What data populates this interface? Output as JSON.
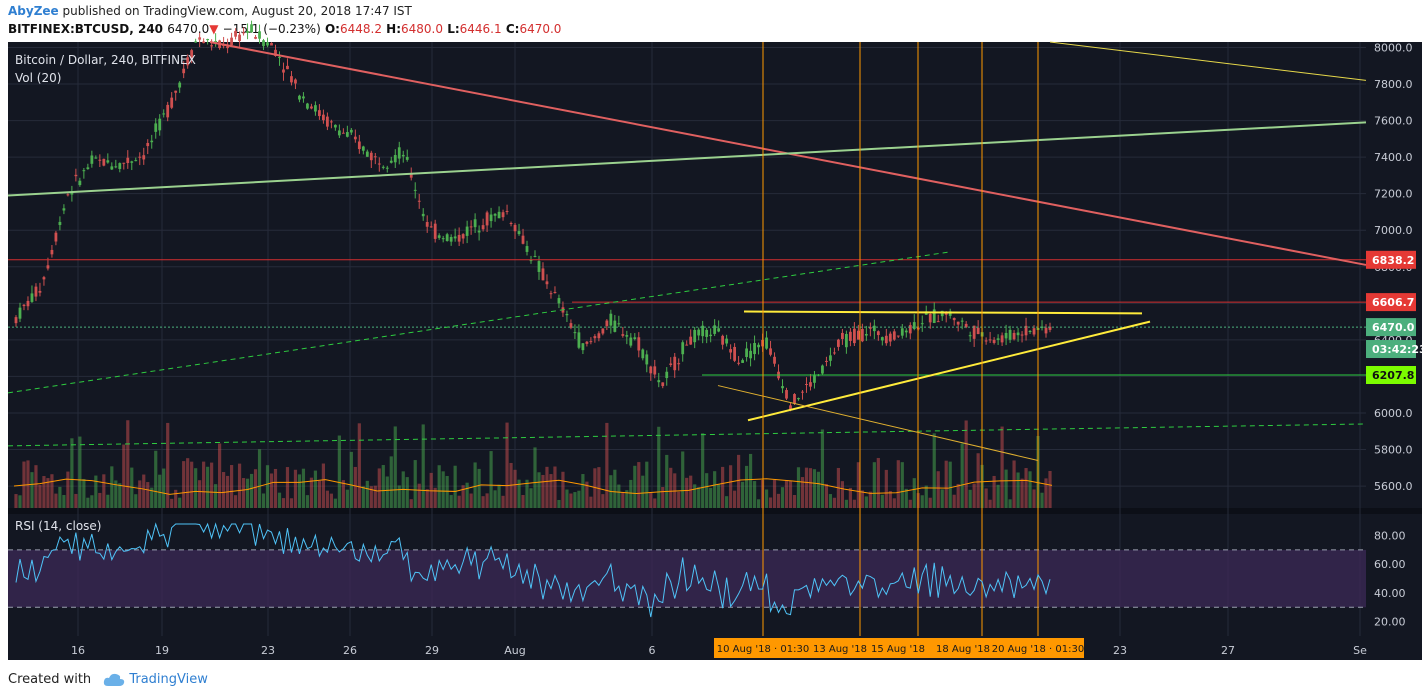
{
  "header": {
    "author": "AbyZee",
    "published_text": "published on TradingView.com, August 20, 2018 17:47 IST"
  },
  "symbol_bar": {
    "symbol": "BITFINEX:BTCUSD, 240",
    "last": "6470.0",
    "change": "−15.1 (−0.23%)",
    "open_label": "O:",
    "open": "6448.2",
    "high_label": "H:",
    "high": "6480.0",
    "low_label": "L:",
    "low": "6446.1",
    "close_label": "C:",
    "close": "6470.0"
  },
  "chart_data": {
    "type": "candlestick",
    "title": "Bitcoin / Dollar, 240, BITFINEX",
    "volume_label": "Vol (20)",
    "rsi_label": "RSI (14, close)",
    "x_tick_labels": [
      "16",
      "19",
      "23",
      "26",
      "29",
      "Aug",
      "6",
      "23",
      "27",
      "Se"
    ],
    "y_price_ticks": [
      "8000.0",
      "7800.0",
      "7600.0",
      "7400.0",
      "7200.0",
      "7000.0",
      "6800.0",
      "6600.0",
      "6400.0",
      "6200.0",
      "6000.0",
      "5800.0",
      "5600.0"
    ],
    "y_rsi_ticks": [
      "80.00",
      "60.00",
      "40.00",
      "20.00"
    ],
    "ylim": [
      5480,
      8030
    ],
    "rsi_ylim": [
      10,
      95
    ],
    "price_labels": [
      {
        "text": "6838.2",
        "value": 6838.2,
        "color": "#e53935"
      },
      {
        "text": "6606.7",
        "value": 6606.7,
        "color": "#e53935"
      },
      {
        "text": "6470.0",
        "value": 6470.0,
        "color": "#4caf7d"
      },
      {
        "text": "03:42:23",
        "value": 6350,
        "color": "#4caf7d"
      },
      {
        "text": "6207.8",
        "value": 6207.8,
        "color": "#7cfc00"
      }
    ],
    "horizontal_lines": [
      {
        "value": 6838.2,
        "color": "#d32f2f"
      },
      {
        "value": 6606.7,
        "color": "#d32f2f"
      },
      {
        "value": 6207.8,
        "color": "#2ecc40"
      },
      {
        "value": 6470.0,
        "color": "#4caf7d",
        "style": "dotted"
      }
    ],
    "date_labels": [
      "10 Aug '18 · 01:30",
      "13 Aug '18",
      "15 Aug '18",
      "18 Aug '18",
      "20 Aug '18 · 01:30"
    ],
    "price_path": [
      [
        6380,
        6460,
        6300,
        6520
      ],
      [
        6500,
        6540,
        6280,
        6700
      ],
      [
        6700,
        6780,
        6600,
        7200
      ],
      [
        7300,
        7450,
        7250,
        7380
      ],
      [
        7380,
        7420,
        7300,
        7360
      ],
      [
        7350,
        7470,
        7250,
        7420
      ],
      [
        7420,
        7500,
        7380,
        7700
      ],
      [
        7700,
        7820,
        7600,
        8050
      ],
      [
        8050,
        8120,
        7900,
        8000
      ],
      [
        7950,
        8200,
        7850,
        8100
      ],
      [
        8100,
        8200,
        7950,
        8000
      ],
      [
        8000,
        8100,
        7700,
        7750
      ],
      [
        7750,
        7800,
        7550,
        7600
      ],
      [
        7600,
        7700,
        7450,
        7500
      ],
      [
        7480,
        7550,
        7300,
        7380
      ],
      [
        7400,
        7450,
        7300,
        7420
      ],
      [
        7420,
        7450,
        6950,
        7000
      ],
      [
        7000,
        7050,
        6900,
        6950
      ],
      [
        6950,
        7100,
        6900,
        7050
      ],
      [
        7050,
        7150,
        6950,
        7100
      ],
      [
        7100,
        7150,
        6800,
        6850
      ],
      [
        6850,
        6900,
        6550,
        6600
      ],
      [
        6600,
        6650,
        6300,
        6350
      ],
      [
        6350,
        6550,
        6250,
        6500
      ],
      [
        6500,
        6580,
        6350,
        6400
      ],
      [
        6400,
        6450,
        6100,
        6150
      ],
      [
        6150,
        6450,
        6100,
        6400
      ],
      [
        6400,
        6520,
        6300,
        6450
      ],
      [
        6450,
        6500,
        6250,
        6300
      ],
      [
        6300,
        6450,
        6250,
        6400
      ],
      [
        6400,
        6480,
        6000,
        6050
      ],
      [
        6050,
        6250,
        5980,
        6200
      ],
      [
        6200,
        6450,
        6150,
        6400
      ],
      [
        6400,
        6520,
        6350,
        6450
      ],
      [
        6450,
        6500,
        6350,
        6420
      ],
      [
        6420,
        6550,
        6380,
        6500
      ],
      [
        6500,
        6600,
        6450,
        6550
      ],
      [
        6550,
        6580,
        6400,
        6450
      ],
      [
        6450,
        6480,
        6350,
        6400
      ],
      [
        6400,
        6500,
        6350,
        6450
      ],
      [
        6450,
        6480,
        6400,
        6470
      ]
    ],
    "annotations": [
      "descending trendline",
      "ascending triangle support",
      "resistance 6550"
    ]
  },
  "footer": {
    "created_with": "Created with",
    "brand": "TradingView"
  },
  "colors": {
    "bg": "#131722",
    "up": "#4caf50",
    "down": "#d05050",
    "grid": "#262b3a",
    "orange": "#ff9800",
    "yellow": "#ffeb3b",
    "rsi_line": "#4fc3f7",
    "rsi_band": "#3c2a57"
  }
}
